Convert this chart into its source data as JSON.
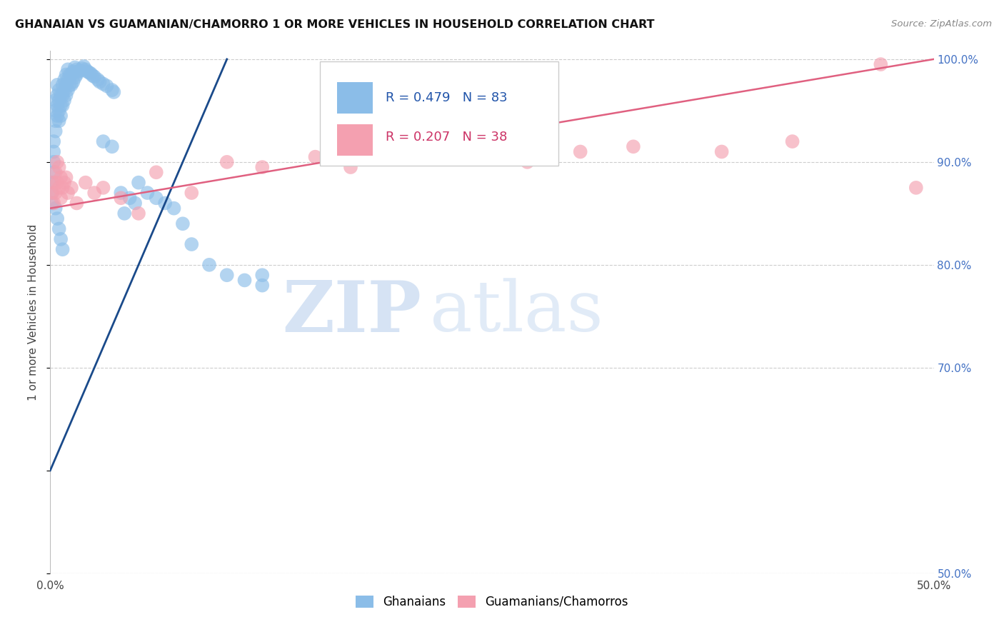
{
  "title": "GHANAIAN VS GUAMANIAN/CHAMORRO 1 OR MORE VEHICLES IN HOUSEHOLD CORRELATION CHART",
  "source": "Source: ZipAtlas.com",
  "ylabel": "1 or more Vehicles in Household",
  "x_min": 0.0,
  "x_max": 0.5,
  "y_min": 0.5,
  "y_max": 1.008,
  "x_tick_positions": [
    0.0,
    0.1,
    0.2,
    0.3,
    0.4,
    0.5
  ],
  "x_tick_labels": [
    "0.0%",
    "",
    "",
    "",
    "",
    "50.0%"
  ],
  "y_tick_vals_right": [
    0.5,
    0.7,
    0.8,
    0.9,
    1.0
  ],
  "y_tick_labels_right": [
    "50.0%",
    "70.0%",
    "80.0%",
    "90.0%",
    "100.0%"
  ],
  "legend_labels": [
    "Ghanaians",
    "Guamanians/Chamorros"
  ],
  "R_blue": 0.479,
  "N_blue": 83,
  "R_pink": 0.207,
  "N_pink": 38,
  "blue_color": "#8BBDE8",
  "blue_line_color": "#1a4a8a",
  "pink_color": "#F4A0B0",
  "pink_line_color": "#E06080",
  "watermark_zip": "ZIP",
  "watermark_atlas": "atlas",
  "blue_x": [
    0.001,
    0.001,
    0.001,
    0.002,
    0.002,
    0.002,
    0.002,
    0.003,
    0.003,
    0.003,
    0.003,
    0.004,
    0.004,
    0.004,
    0.004,
    0.005,
    0.005,
    0.005,
    0.005,
    0.006,
    0.006,
    0.006,
    0.007,
    0.007,
    0.007,
    0.008,
    0.008,
    0.008,
    0.009,
    0.009,
    0.009,
    0.01,
    0.01,
    0.01,
    0.011,
    0.011,
    0.012,
    0.012,
    0.013,
    0.013,
    0.014,
    0.014,
    0.015,
    0.015,
    0.016,
    0.017,
    0.018,
    0.019,
    0.02,
    0.021,
    0.022,
    0.023,
    0.024,
    0.025,
    0.027,
    0.028,
    0.03,
    0.032,
    0.035,
    0.036,
    0.04,
    0.042,
    0.045,
    0.048,
    0.05,
    0.055,
    0.06,
    0.065,
    0.07,
    0.075,
    0.08,
    0.09,
    0.1,
    0.11,
    0.12,
    0.003,
    0.004,
    0.005,
    0.006,
    0.007,
    0.03,
    0.035,
    0.12
  ],
  "blue_y": [
    0.88,
    0.87,
    0.86,
    0.92,
    0.91,
    0.9,
    0.89,
    0.96,
    0.95,
    0.94,
    0.93,
    0.975,
    0.965,
    0.955,
    0.945,
    0.97,
    0.96,
    0.95,
    0.94,
    0.965,
    0.955,
    0.945,
    0.975,
    0.965,
    0.955,
    0.98,
    0.97,
    0.96,
    0.985,
    0.975,
    0.965,
    0.99,
    0.98,
    0.97,
    0.985,
    0.975,
    0.985,
    0.975,
    0.988,
    0.978,
    0.992,
    0.982,
    0.99,
    0.985,
    0.988,
    0.989,
    0.991,
    0.993,
    0.99,
    0.988,
    0.987,
    0.986,
    0.984,
    0.983,
    0.98,
    0.978,
    0.976,
    0.974,
    0.97,
    0.968,
    0.87,
    0.85,
    0.865,
    0.86,
    0.88,
    0.87,
    0.865,
    0.86,
    0.855,
    0.84,
    0.82,
    0.8,
    0.79,
    0.785,
    0.78,
    0.855,
    0.845,
    0.835,
    0.825,
    0.815,
    0.92,
    0.915,
    0.79
  ],
  "pink_x": [
    0.001,
    0.002,
    0.002,
    0.003,
    0.003,
    0.004,
    0.004,
    0.005,
    0.005,
    0.006,
    0.006,
    0.007,
    0.008,
    0.009,
    0.01,
    0.012,
    0.015,
    0.02,
    0.025,
    0.03,
    0.04,
    0.05,
    0.06,
    0.08,
    0.1,
    0.12,
    0.15,
    0.17,
    0.2,
    0.22,
    0.24,
    0.27,
    0.3,
    0.33,
    0.38,
    0.42,
    0.47,
    0.49
  ],
  "pink_y": [
    0.87,
    0.88,
    0.86,
    0.89,
    0.87,
    0.9,
    0.88,
    0.895,
    0.875,
    0.885,
    0.865,
    0.875,
    0.88,
    0.885,
    0.87,
    0.875,
    0.86,
    0.88,
    0.87,
    0.875,
    0.865,
    0.85,
    0.89,
    0.87,
    0.9,
    0.895,
    0.905,
    0.895,
    0.92,
    0.91,
    0.905,
    0.9,
    0.91,
    0.915,
    0.91,
    0.92,
    0.995,
    0.875
  ],
  "blue_line_x0": 0.0,
  "blue_line_y0": 0.6,
  "blue_line_x1": 0.1,
  "blue_line_y1": 1.0,
  "pink_line_x0": 0.0,
  "pink_line_y0": 0.855,
  "pink_line_x1": 0.5,
  "pink_line_y1": 1.0
}
